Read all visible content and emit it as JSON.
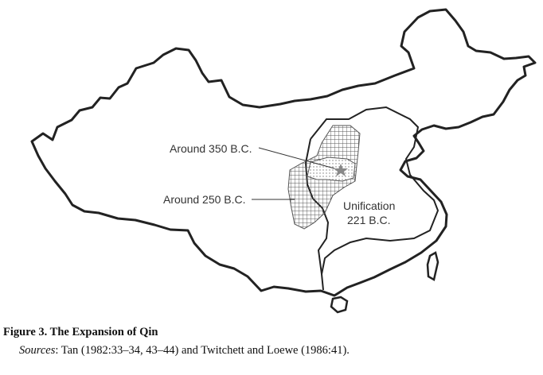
{
  "map": {
    "labels": {
      "around_350": "Around 350 B.C.",
      "around_250": "Around 250 B.C.",
      "unification_line1": "Unification",
      "unification_line2": "221 B.C."
    },
    "capital_marker": "star-icon"
  },
  "caption": {
    "title": "Figure 3. The Expansion of Qin",
    "sources_label": "Sources",
    "sources_text": ": Tan (1982:33–34, 43–44) and Twitchett and Loewe (1986:41)."
  },
  "colors": {
    "outline": "#222222",
    "hatch": "#555555",
    "dots": "#777777",
    "star": "#888888"
  }
}
